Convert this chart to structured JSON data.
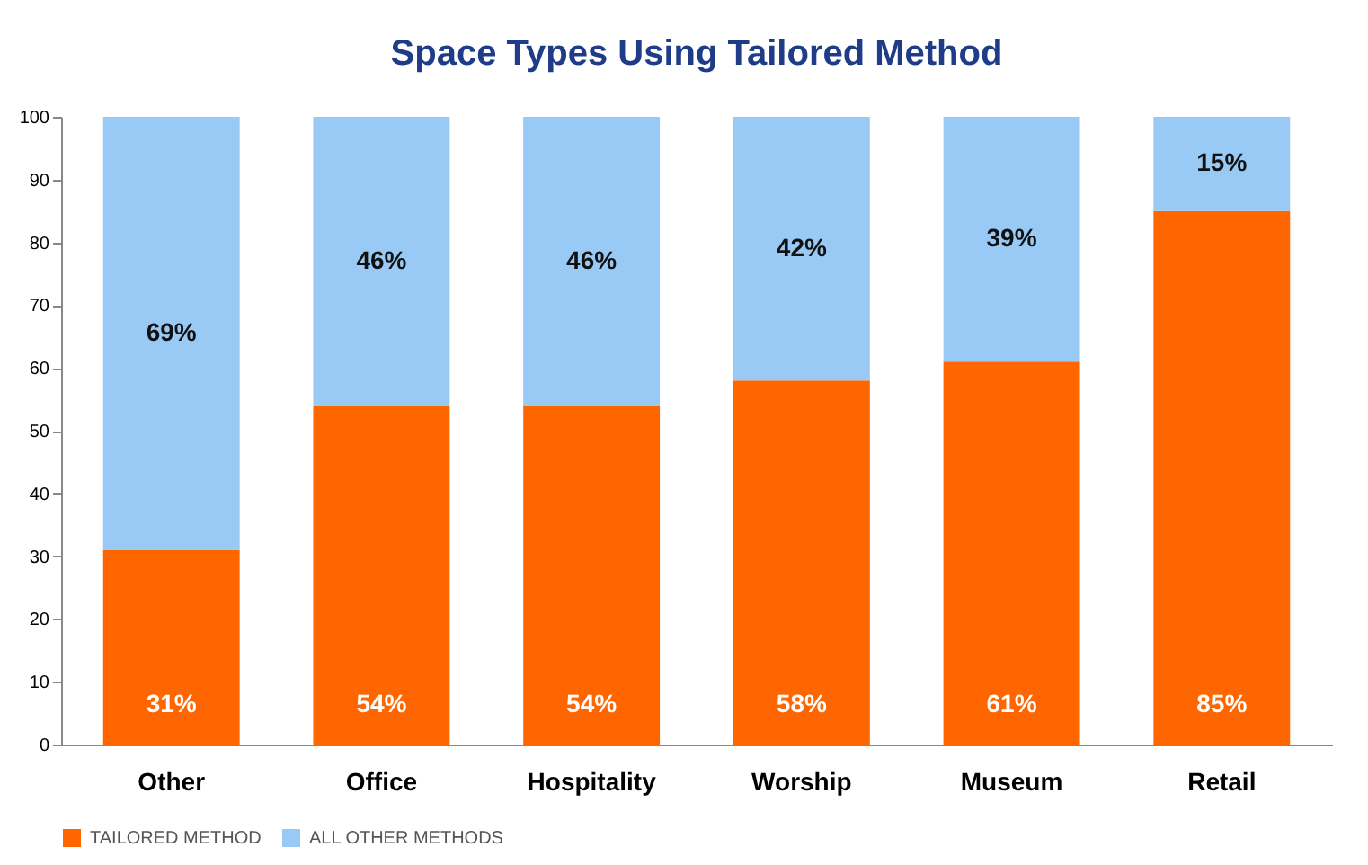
{
  "chart_data": {
    "type": "bar",
    "title": "Space Types Using Tailored Method",
    "categories": [
      "Other",
      "Office",
      "Hospitality",
      "Worship",
      "Museum",
      "Retail"
    ],
    "stacked": true,
    "series": [
      {
        "name": "TAILORED METHOD",
        "color": "#ff6600",
        "values": [
          31,
          54,
          54,
          58,
          61,
          85
        ],
        "value_labels": [
          "31%",
          "54%",
          "54%",
          "58%",
          "61%",
          "85%"
        ]
      },
      {
        "name": "ALL OTHER METHODS",
        "color": "#99c9f5",
        "values": [
          69,
          46,
          46,
          42,
          39,
          15
        ],
        "value_labels": [
          "69%",
          "46%",
          "46%",
          "42%",
          "39%",
          "15%"
        ]
      }
    ],
    "ylim": [
      0,
      100
    ],
    "yticks": [
      0,
      10,
      20,
      30,
      40,
      50,
      60,
      70,
      80,
      90,
      100
    ],
    "grid": false,
    "legend": "bottom"
  }
}
